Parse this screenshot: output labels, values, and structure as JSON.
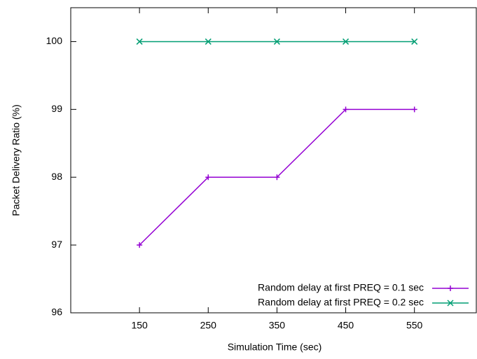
{
  "chart_data": {
    "type": "line",
    "xlabel": "Simulation Time (sec)",
    "ylabel": "Packet Delivery Ratio (%)",
    "x": [
      150,
      250,
      350,
      450,
      550
    ],
    "series": [
      {
        "name": "Random delay at first PREQ = 0.1 sec",
        "color": "#9400d3",
        "marker": "plus",
        "values": [
          97,
          98,
          98,
          99,
          99
        ]
      },
      {
        "name": "Random delay at first PREQ = 0.2 sec",
        "color": "#009e73",
        "marker": "cross",
        "values": [
          100,
          100,
          100,
          100,
          100
        ]
      }
    ],
    "xlim": [
      50,
      640
    ],
    "xticks": [
      150,
      250,
      350,
      450,
      550
    ],
    "ylim": [
      96,
      100.5
    ],
    "yticks": [
      96,
      97,
      98,
      99,
      100
    ],
    "legend": "lower right"
  }
}
